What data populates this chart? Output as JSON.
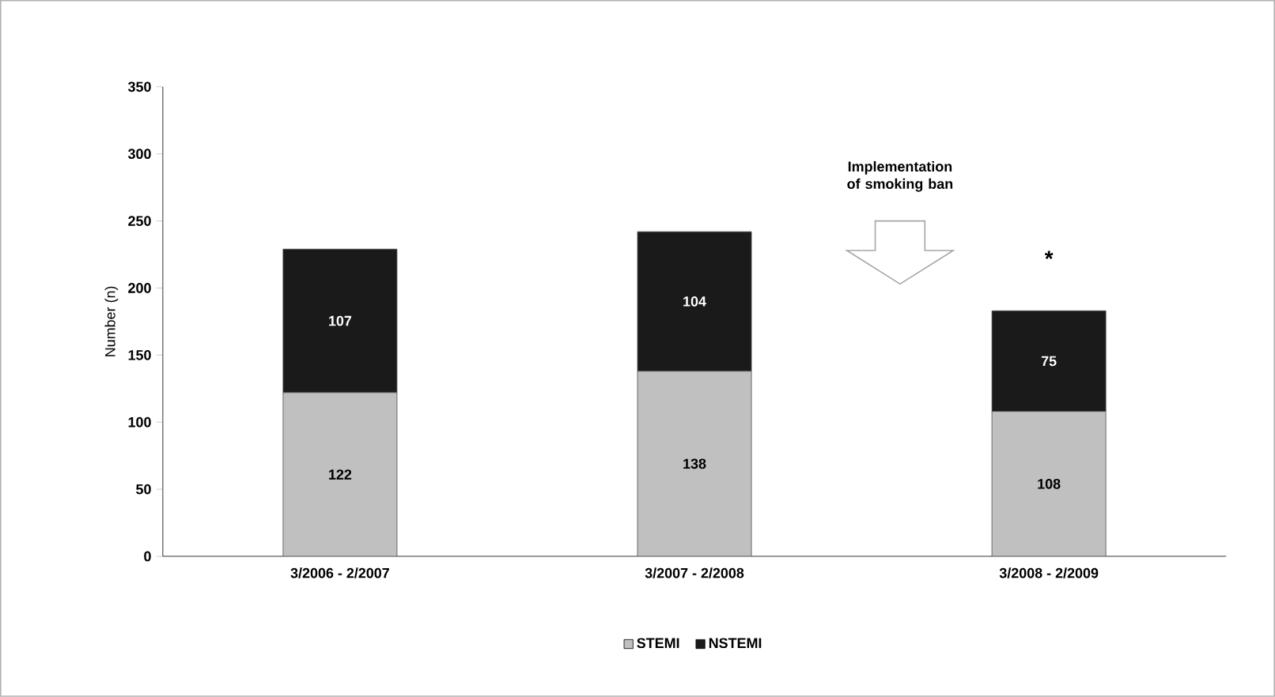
{
  "chart_data": {
    "type": "bar",
    "stacked": true,
    "ylabel": "Number (n)",
    "categories": [
      "3/2006 - 2/2007",
      "3/2007 - 2/2008",
      "3/2008 - 2/2009"
    ],
    "series": [
      {
        "name": "STEMI",
        "color": "#c0c0c0",
        "values": [
          122,
          138,
          108
        ]
      },
      {
        "name": "NSTEMI",
        "color": "#1a1a1a",
        "values": [
          107,
          104,
          75
        ]
      }
    ],
    "ylim": [
      0,
      350
    ],
    "yticks": [
      0,
      50,
      100,
      150,
      200,
      250,
      300,
      350
    ],
    "data_labels": true,
    "legend": "bottom",
    "annotations": [
      "Implementation of smoking ban",
      "*"
    ]
  }
}
